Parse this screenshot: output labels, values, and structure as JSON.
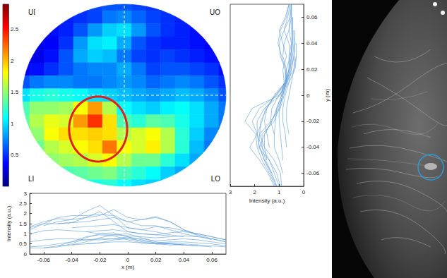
{
  "chart_data": {
    "type": "heatmap",
    "quadrant_labels": [
      "UI",
      "UO",
      "LI",
      "LO"
    ],
    "x": [
      -0.07,
      -0.06,
      -0.05,
      -0.04,
      -0.03,
      -0.02,
      -0.01,
      0,
      0.01,
      0.02,
      0.03,
      0.04,
      0.05,
      0.06,
      0.07
    ],
    "y": [
      0.07,
      0.06,
      0.05,
      0.04,
      0.03,
      0.02,
      0.01,
      0,
      -0.01,
      -0.02,
      -0.03,
      -0.04,
      -0.05,
      -0.06,
      -0.07
    ],
    "values": [
      [
        null,
        null,
        null,
        null,
        0.5,
        0.55,
        0.6,
        0.6,
        0.55,
        0.5,
        0.5,
        null,
        null,
        null,
        null
      ],
      [
        null,
        null,
        null,
        0.45,
        0.5,
        0.55,
        0.7,
        0.75,
        0.65,
        0.55,
        0.5,
        0.45,
        null,
        null,
        null
      ],
      [
        null,
        null,
        0.4,
        0.45,
        0.6,
        0.8,
        0.95,
        1.0,
        0.8,
        0.6,
        0.5,
        0.45,
        0.4,
        null,
        null
      ],
      [
        null,
        0.3,
        0.35,
        0.5,
        0.8,
        1.0,
        1.05,
        0.85,
        0.6,
        0.5,
        0.45,
        0.45,
        0.4,
        0.35,
        null
      ],
      [
        0.3,
        0.3,
        0.4,
        0.6,
        0.85,
        0.95,
        0.9,
        0.7,
        0.55,
        0.5,
        0.55,
        0.5,
        0.45,
        0.4,
        0.35
      ],
      [
        0.35,
        0.4,
        0.5,
        0.6,
        0.7,
        0.75,
        0.75,
        0.85,
        0.7,
        0.55,
        0.6,
        0.6,
        0.55,
        0.5,
        0.4
      ],
      [
        0.6,
        0.7,
        0.75,
        0.75,
        0.7,
        0.7,
        0.75,
        0.8,
        0.75,
        0.65,
        0.7,
        0.75,
        0.7,
        0.6,
        0.5
      ],
      [
        1.0,
        1.15,
        1.2,
        1.15,
        1.1,
        1.0,
        0.95,
        0.9,
        0.85,
        0.8,
        0.85,
        0.9,
        0.85,
        0.75,
        0.6
      ],
      [
        1.3,
        1.5,
        1.5,
        1.55,
        1.8,
        2.1,
        1.6,
        1.1,
        1.0,
        0.95,
        1.05,
        1.1,
        1.0,
        0.85,
        0.7
      ],
      [
        1.35,
        1.6,
        1.75,
        1.7,
        2.1,
        2.4,
        1.9,
        1.3,
        1.2,
        1.35,
        1.3,
        1.15,
        1.0,
        0.85,
        0.7
      ],
      [
        1.2,
        1.5,
        1.8,
        1.9,
        1.9,
        1.95,
        1.9,
        1.6,
        1.7,
        1.8,
        1.6,
        1.2,
        0.95,
        0.75,
        0.6
      ],
      [
        null,
        1.4,
        1.6,
        1.7,
        1.8,
        1.9,
        2.2,
        1.8,
        1.7,
        1.85,
        1.6,
        1.2,
        0.9,
        0.7,
        null
      ],
      [
        null,
        null,
        1.5,
        1.55,
        1.6,
        1.7,
        1.8,
        1.6,
        1.4,
        1.4,
        1.2,
        1.0,
        0.85,
        null,
        null
      ],
      [
        null,
        null,
        null,
        1.3,
        1.35,
        1.4,
        1.45,
        1.3,
        1.2,
        1.1,
        0.95,
        0.85,
        null,
        null,
        null
      ],
      [
        null,
        null,
        null,
        null,
        1.1,
        1.15,
        1.2,
        1.1,
        1.0,
        0.95,
        0.9,
        null,
        null,
        null,
        null
      ]
    ],
    "xlim": [
      -0.07,
      0.07
    ],
    "ylim": [
      -0.07,
      0.07
    ],
    "crosshair": {
      "x": 0,
      "y": 0
    },
    "colorbar": {
      "range": [
        0,
        2.9
      ],
      "ticks": [
        0.5,
        1,
        1.5,
        2,
        2.5
      ]
    },
    "highlight": {
      "center": [
        -0.018,
        -0.026
      ],
      "radii": [
        0.02,
        0.025
      ],
      "color": "#e0201b"
    },
    "profiles": {
      "color": "#5b9bd5",
      "bottom": {
        "type": "line",
        "xlabel": "x (m)",
        "ylabel": "Intensity (a.u.)",
        "xlim": [
          -0.07,
          0.07
        ],
        "xticks": [
          -0.06,
          -0.04,
          -0.02,
          0,
          0.02,
          0.04,
          0.06
        ],
        "ylim": [
          0,
          3
        ],
        "yticks": [
          0,
          0.5,
          1,
          1.5,
          2,
          2.5,
          3
        ]
      },
      "right": {
        "type": "line",
        "xlabel": "Intensity (a.u.)",
        "ylabel": "y (m)",
        "xlim": [
          3,
          0
        ],
        "xticks": [
          3,
          2,
          1,
          0
        ],
        "ylim": [
          -0.07,
          0.07
        ],
        "yticks": [
          -0.06,
          -0.04,
          -0.02,
          0,
          0.02,
          0.04,
          0.06
        ]
      }
    }
  }
}
